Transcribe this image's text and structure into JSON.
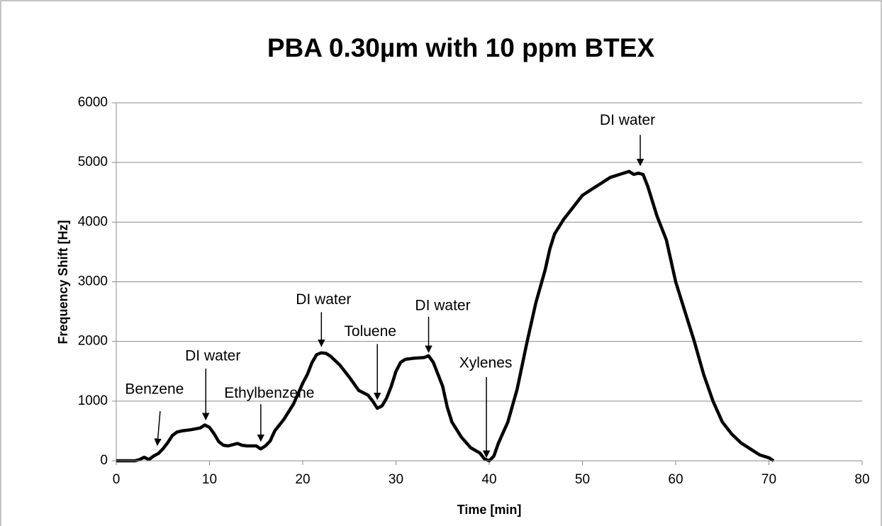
{
  "chart_data": {
    "type": "line",
    "title": "PBA 0.30µm with 10 ppm BTEX",
    "x_label": "Time [min]",
    "y_label": "Frequency Shift [Hz]",
    "xlim": [
      0,
      80
    ],
    "xticks": [
      0,
      10,
      20,
      30,
      40,
      50,
      60,
      70,
      80
    ],
    "ylim": [
      0,
      6000
    ],
    "yticks": [
      0,
      1000,
      2000,
      3000,
      4000,
      5000,
      6000
    ],
    "grid": true,
    "series": [
      {
        "color": "#000000",
        "x": [
          0,
          1,
          2,
          2.5,
          3,
          3.5,
          4,
          4.5,
          5,
          5.5,
          6,
          6.5,
          7,
          8,
          9,
          9.5,
          10,
          10.5,
          11,
          11.5,
          12,
          13,
          13.5,
          14,
          15,
          15.5,
          16,
          16.5,
          17,
          18,
          19,
          20,
          20.5,
          21,
          21.5,
          22,
          22.5,
          23,
          24,
          25,
          26,
          27,
          27.5,
          28,
          28.5,
          29,
          29.5,
          30,
          30.5,
          31,
          32,
          33,
          33.5,
          34,
          35,
          35.5,
          36,
          37,
          38,
          39,
          39.5,
          40,
          40.5,
          41,
          42,
          43,
          44,
          45,
          46,
          46.5,
          47,
          48,
          49,
          50,
          51,
          52,
          53,
          54,
          55,
          55.5,
          56,
          56.5,
          57,
          58,
          59,
          60,
          61,
          62,
          63,
          64,
          65,
          66,
          67,
          68,
          69,
          70,
          70.5
        ],
        "values": [
          0,
          0,
          0,
          20,
          60,
          20,
          80,
          120,
          200,
          300,
          420,
          480,
          500,
          520,
          550,
          600,
          560,
          450,
          320,
          260,
          250,
          290,
          260,
          250,
          250,
          200,
          250,
          330,
          500,
          700,
          950,
          1300,
          1450,
          1650,
          1780,
          1810,
          1800,
          1750,
          1600,
          1400,
          1180,
          1100,
          1000,
          880,
          920,
          1050,
          1250,
          1500,
          1650,
          1700,
          1720,
          1730,
          1760,
          1650,
          1250,
          900,
          650,
          400,
          220,
          130,
          30,
          0,
          80,
          300,
          650,
          1200,
          1950,
          2650,
          3200,
          3550,
          3800,
          4050,
          4250,
          4450,
          4550,
          4650,
          4750,
          4800,
          4850,
          4800,
          4820,
          4800,
          4600,
          4100,
          3700,
          3000,
          2500,
          2000,
          1450,
          1000,
          650,
          450,
          300,
          200,
          100,
          50,
          0
        ]
      }
    ],
    "annotations": [
      {
        "text": "Benzene",
        "x": 4.4,
        "y": 260
      },
      {
        "text": "DI water",
        "x": 9.6,
        "y": 690
      },
      {
        "text": "Ethylbenzene",
        "x": 15.5,
        "y": 330
      },
      {
        "text": "DI water",
        "x": 22,
        "y": 1920
      },
      {
        "text": "Toluene",
        "x": 28,
        "y": 1030
      },
      {
        "text": "DI water",
        "x": 33.5,
        "y": 1820
      },
      {
        "text": "Xylenes",
        "x": 39.7,
        "y": 60
      },
      {
        "text": "DI water",
        "x": 56.2,
        "y": 4950
      }
    ]
  }
}
